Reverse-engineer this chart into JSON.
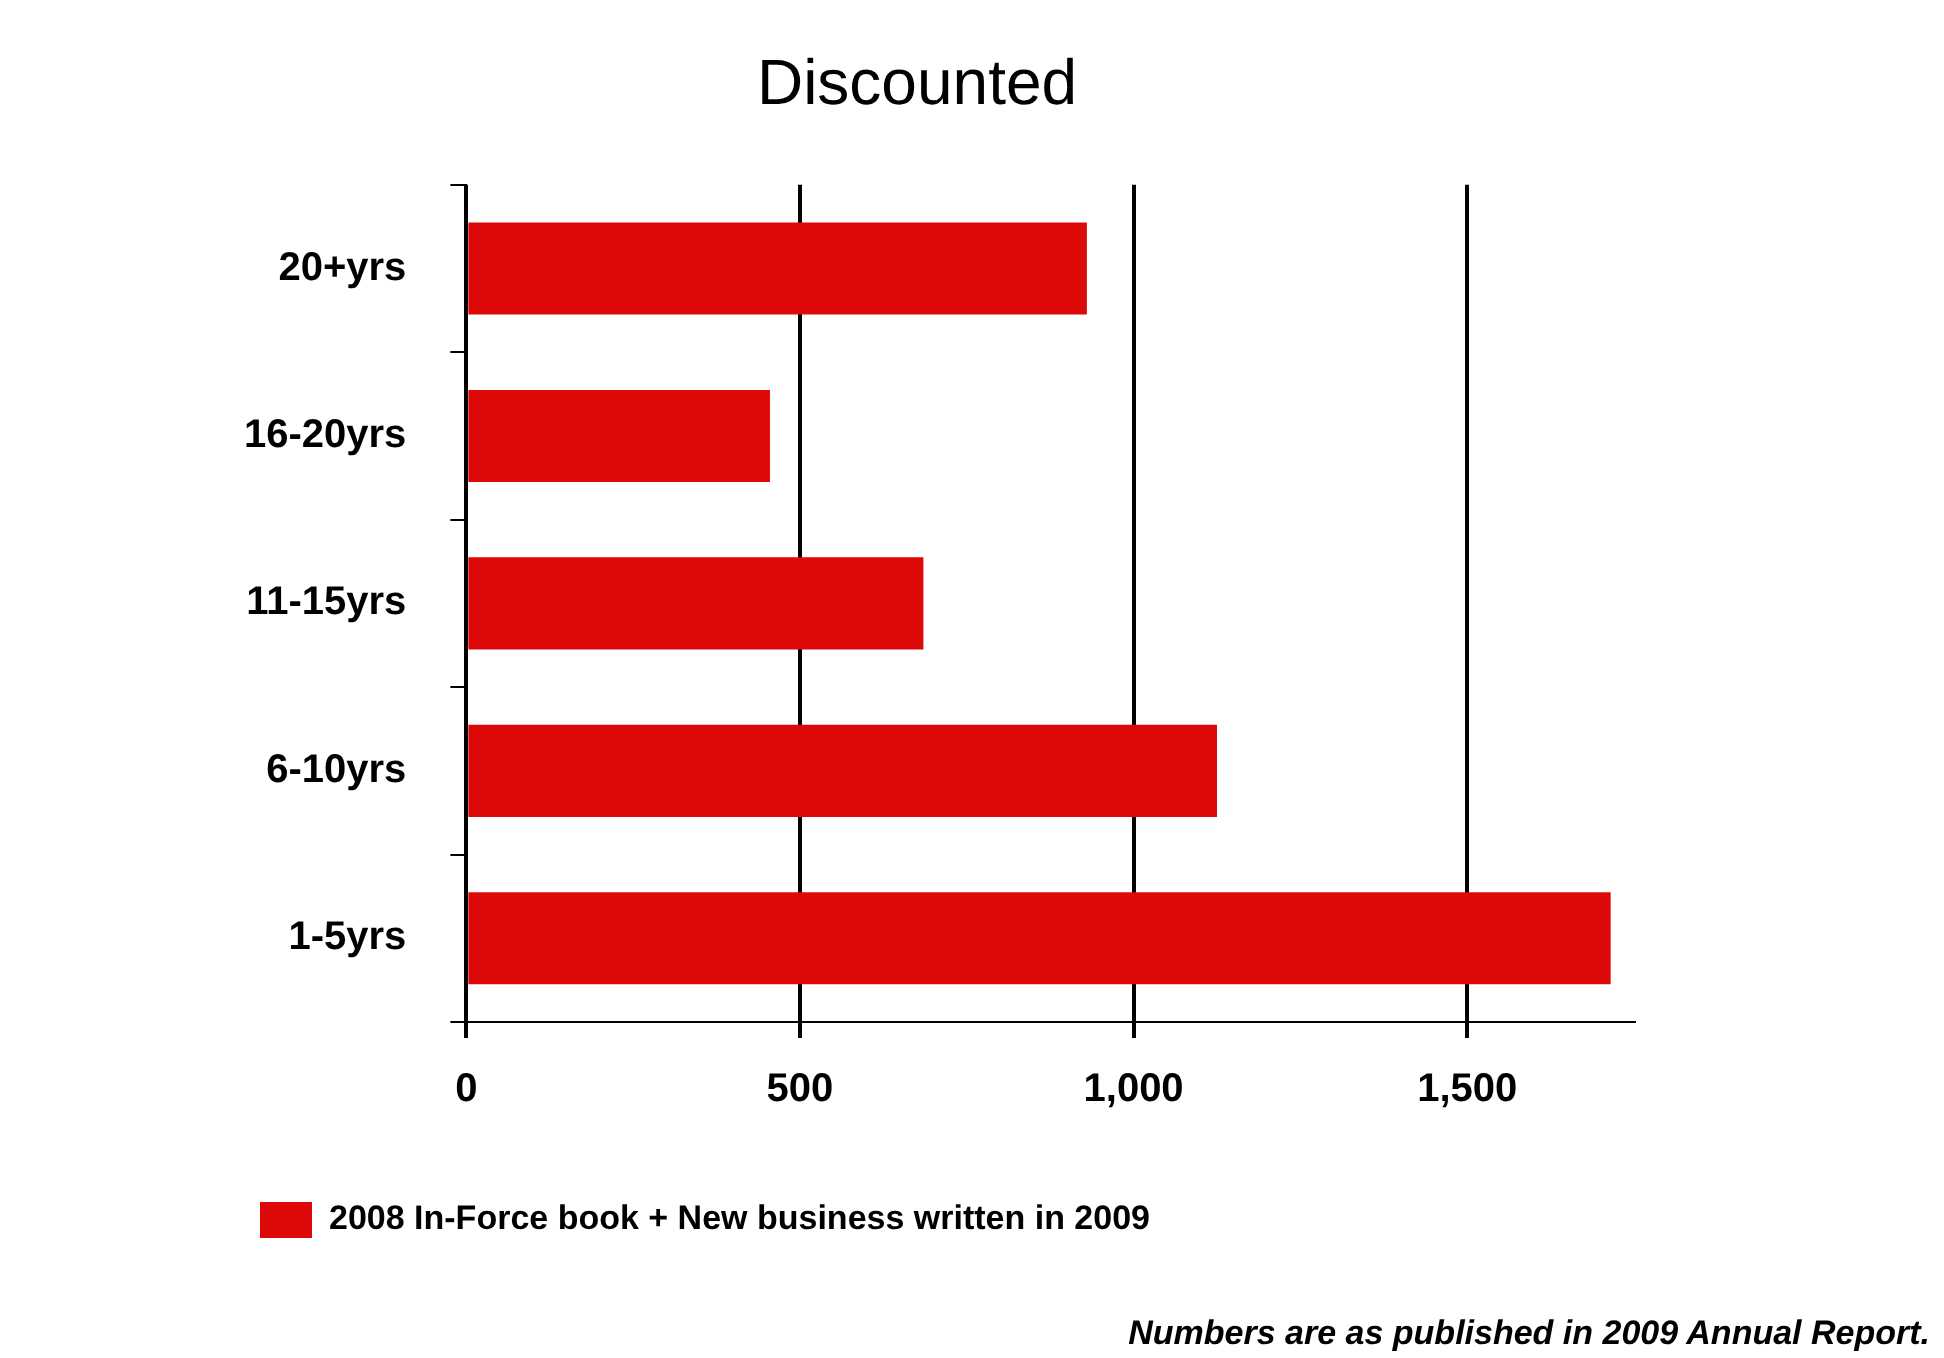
{
  "chart_data": {
    "type": "bar",
    "orientation": "horizontal",
    "title": "Discounted",
    "categories": [
      "20+yrs",
      "16-20yrs",
      "11-15yrs",
      "6-10yrs",
      "1-5yrs"
    ],
    "series": [
      {
        "name": "2008 In-Force book + New business written in 2009",
        "color": "#dd0808",
        "values": [
          930,
          455,
          685,
          1125,
          1715
        ]
      }
    ],
    "xlim": [
      0,
      1750
    ],
    "xticks": [
      0,
      {
        "value": 500,
        "label": "500"
      },
      {
        "value": 1000,
        "label": "1,000"
      },
      {
        "value": 1500,
        "label": "1,500"
      }
    ],
    "grid": "x",
    "legend": "bottom left",
    "annotations": [
      "Numbers are as published in 2009 Annual Report."
    ]
  }
}
